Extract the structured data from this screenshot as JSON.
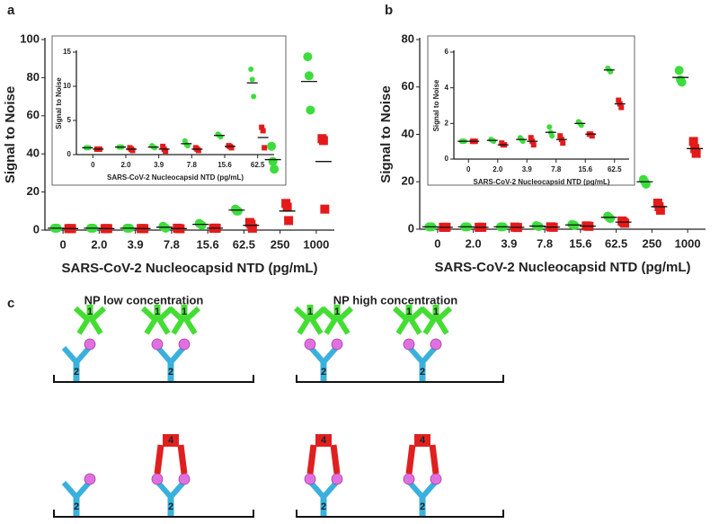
{
  "chart_data": [
    {
      "type": "dot",
      "panel": "a",
      "y_label": "Signal to Noise",
      "x_label": "SARS-CoV-2 Nucleocapsid NTD (pg/mL)",
      "categories": [
        "0",
        "2.0",
        "3.9",
        "7.8",
        "15.6",
        "62.5",
        "250",
        "1000"
      ],
      "ylim": [
        0,
        100
      ],
      "yticks": [
        0,
        20,
        40,
        60,
        80,
        100
      ],
      "series": [
        {
          "color": "#3ddc3d",
          "values": [
            1,
            1,
            1,
            1.5,
            3,
            10.5,
            37,
            78
          ],
          "points": [
            [
              1,
              1,
              1
            ],
            [
              1,
              1,
              1
            ],
            [
              1,
              1,
              1
            ],
            [
              2,
              1.5,
              1
            ],
            [
              3.5,
              3,
              2.5
            ],
            [
              11,
              10,
              10
            ],
            [
              44,
              36,
              32
            ],
            [
              91,
              81,
              63
            ]
          ]
        },
        {
          "color": "#e41a1a",
          "values": [
            0.8,
            0.8,
            0.8,
            0.8,
            1,
            2.5,
            10,
            36
          ],
          "points": [
            [
              0.8,
              0.8,
              0.8
            ],
            [
              0.8,
              0.8,
              0.8
            ],
            [
              0.8,
              0.8,
              0.8
            ],
            [
              1,
              0.8,
              0.7
            ],
            [
              1,
              1,
              1
            ],
            [
              4,
              3,
              1
            ],
            [
              14,
              12,
              5
            ],
            [
              48,
              47,
              11
            ]
          ]
        }
      ]
    },
    {
      "type": "dot",
      "y_label": "Signal to Noise",
      "x_label": "SARS-CoV-2 Nucleocapsid NTD (pg/mL)",
      "categories": [
        "0",
        "2.0",
        "3.9",
        "7.8",
        "15.6",
        "62.5"
      ],
      "ylim": [
        0,
        15
      ],
      "yticks": [
        0,
        5,
        10,
        15
      ],
      "series": [
        {
          "color": "#3ddc3d",
          "values": [
            1,
            1.1,
            1.1,
            1.6,
            2.8,
            10.5
          ],
          "points": [
            [
              1,
              1,
              1
            ],
            [
              1.1,
              1.1,
              1.1
            ],
            [
              1.3,
              1.1,
              1
            ],
            [
              2,
              1.5,
              1.3
            ],
            [
              3,
              2.8,
              2.6
            ],
            [
              12.5,
              11,
              8.5
            ]
          ]
        },
        {
          "color": "#e41a1a",
          "values": [
            0.8,
            0.8,
            0.8,
            0.8,
            1.2,
            2.5
          ],
          "points": [
            [
              0.8,
              0.8,
              0.8
            ],
            [
              1,
              0.8,
              0.6
            ],
            [
              1.2,
              0.8,
              0.5
            ],
            [
              1,
              0.8,
              0.6
            ],
            [
              1.3,
              1.2,
              1
            ],
            [
              4,
              3.5,
              1
            ]
          ]
        }
      ]
    },
    {
      "type": "dot",
      "panel": "b",
      "y_label": "Signal to Noise",
      "x_label": "SARS-CoV-2 Nucleocapsid NTD (pg/mL)",
      "categories": [
        "0",
        "2.0",
        "3.9",
        "7.8",
        "15.6",
        "62.5",
        "250",
        "1000"
      ],
      "ylim": [
        0,
        80
      ],
      "yticks": [
        0,
        20,
        40,
        60,
        80
      ],
      "series": [
        {
          "color": "#3ddc3d",
          "values": [
            1,
            1,
            1,
            1.3,
            1.8,
            5,
            20,
            64
          ],
          "points": [
            [
              1,
              1,
              1
            ],
            [
              1,
              1,
              1
            ],
            [
              1,
              1,
              1
            ],
            [
              1.5,
              1.3,
              1.1
            ],
            [
              2,
              1.8,
              1.6
            ],
            [
              5.5,
              5,
              4.5
            ],
            [
              21,
              20,
              19
            ],
            [
              67,
              63,
              62
            ]
          ]
        },
        {
          "color": "#e41a1a",
          "values": [
            0.8,
            0.8,
            0.8,
            0.9,
            1.3,
            3,
            9.5,
            34
          ],
          "points": [
            [
              0.8,
              0.8,
              0.8
            ],
            [
              0.8,
              0.8,
              0.8
            ],
            [
              0.9,
              0.8,
              0.7
            ],
            [
              1,
              0.9,
              0.8
            ],
            [
              1.4,
              1.3,
              1.2
            ],
            [
              3.5,
              3,
              2.5
            ],
            [
              11,
              9.5,
              8
            ],
            [
              37,
              34,
              32
            ]
          ]
        }
      ]
    },
    {
      "type": "dot",
      "y_label": "Signal to Noise",
      "x_label": "SARS-CoV-2 Nucleocapsid NTD (pg/mL)",
      "categories": [
        "0",
        "2.0",
        "3.9",
        "7.8",
        "15.6",
        "62.5"
      ],
      "ylim": [
        0,
        6
      ],
      "yticks": [
        0,
        2,
        4,
        6
      ],
      "series": [
        {
          "color": "#3ddc3d",
          "values": [
            1,
            1.05,
            1.1,
            1.5,
            2,
            5
          ],
          "points": [
            [
              1,
              1,
              1
            ],
            [
              1.1,
              1.05,
              1
            ],
            [
              1.2,
              1.1,
              1
            ],
            [
              1.8,
              1.5,
              1.3
            ],
            [
              2.1,
              2,
              1.9
            ],
            [
              5.1,
              5,
              4.9
            ]
          ]
        },
        {
          "color": "#e41a1a",
          "values": [
            1,
            0.8,
            1,
            1.1,
            1.4,
            3.1
          ],
          "points": [
            [
              1,
              1,
              1
            ],
            [
              0.9,
              0.8,
              0.8
            ],
            [
              1.2,
              1,
              0.8
            ],
            [
              1.3,
              1.1,
              0.9
            ],
            [
              1.4,
              1.4,
              1.3
            ],
            [
              3.3,
              3.1,
              2.9
            ]
          ]
        }
      ]
    }
  ],
  "diagram": {
    "panel": "c",
    "titles": [
      "NP  low concentration",
      "NP high concentration"
    ],
    "labels": {
      "detection": "1",
      "capture": "2",
      "reporter": "4"
    }
  }
}
